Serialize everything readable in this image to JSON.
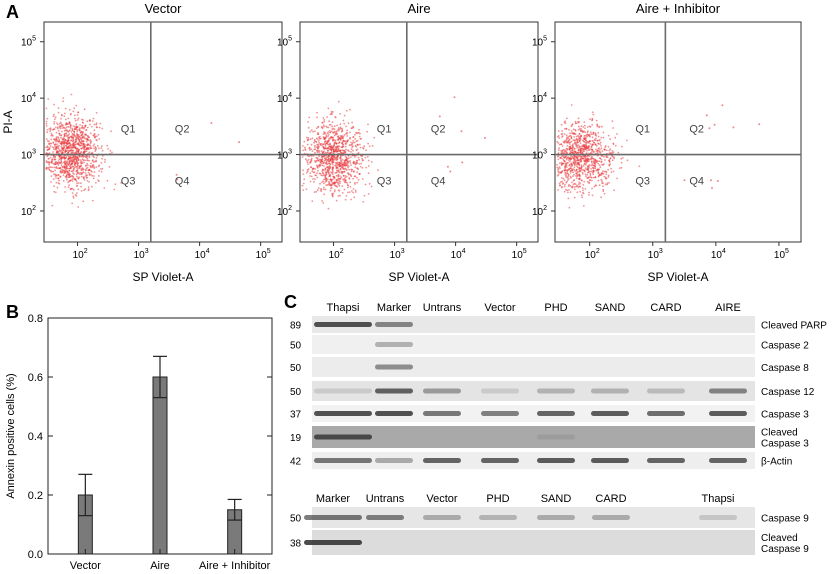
{
  "panel_letters": {
    "a": "A",
    "b": "B",
    "c": "C"
  },
  "flow": {
    "panels": [
      {
        "title": "Vector",
        "pop": {
          "cx": 1.9,
          "cy": 3.05,
          "sx": 0.24,
          "sy": 0.32,
          "n": 1150
        },
        "scatter_q2": 2,
        "scatter_q4": 2
      },
      {
        "title": "Aire",
        "pop": {
          "cx": 2.0,
          "cy": 2.95,
          "sx": 0.24,
          "sy": 0.32,
          "n": 1000
        },
        "scatter_q2": 4,
        "scatter_q4": 3
      },
      {
        "title": "Aire + Inhibitor",
        "pop": {
          "cx": 1.85,
          "cy": 2.95,
          "sx": 0.24,
          "sy": 0.3,
          "n": 1000
        },
        "scatter_q2": 6,
        "scatter_q4": 4
      }
    ],
    "xlabel": "SP Violet-A",
    "ylabel": "PI-A",
    "gate_x": 3.2,
    "gate_y": 3.0,
    "quadrants": [
      "Q1",
      "Q2",
      "Q3",
      "Q4"
    ],
    "x_ticks": [
      {
        "base": "10",
        "exp": "2",
        "v": 2
      },
      {
        "base": "10",
        "exp": "3",
        "v": 3
      },
      {
        "base": "10",
        "exp": "4",
        "v": 4
      },
      {
        "base": "10",
        "exp": "5",
        "v": 5
      }
    ],
    "y_ticks": [
      {
        "base": "10",
        "exp": "2",
        "v": 2
      },
      {
        "base": "10",
        "exp": "3",
        "v": 3
      },
      {
        "base": "10",
        "exp": "4",
        "v": 4
      },
      {
        "base": "10",
        "exp": "5",
        "v": 5
      }
    ],
    "dot_color": "#e8393d"
  },
  "chart_data": {
    "type": "bar",
    "categories": [
      "Vector",
      "Aire",
      "Aire + Inhibitor"
    ],
    "values": [
      0.2,
      0.6,
      0.15
    ],
    "errors": [
      0.07,
      0.07,
      0.035
    ],
    "ylabel": "Annexin positive cells (%)",
    "xlabel": "",
    "ylim": [
      0,
      0.8
    ],
    "yticks": [
      "0.0",
      "0.2",
      "0.4",
      "0.6",
      "0.8"
    ],
    "bar_color": "#7a7a7a"
  },
  "blot_top": {
    "lanes": [
      "Thapsi",
      "Marker",
      "Untrans",
      "Vector",
      "PHD",
      "SAND",
      "CARD",
      "AIRE"
    ],
    "rows": [
      {
        "mw": "89",
        "label": [
          "Cleaved PARP"
        ],
        "bg": "#e8e8e8",
        "bands": [
          0.9,
          0.6,
          0,
          0,
          0,
          0,
          0,
          0
        ]
      },
      {
        "mw": "50",
        "label": [
          "Caspase 2"
        ],
        "bg": "#f0f0f0",
        "bands": [
          0,
          0.35,
          0,
          0,
          0,
          0,
          0,
          0
        ]
      },
      {
        "mw": "50",
        "label": [
          "Caspase 8"
        ],
        "bg": "#ececec",
        "bands": [
          0,
          0.55,
          0,
          0,
          0,
          0,
          0,
          0
        ]
      },
      {
        "mw": "50",
        "label": [
          "Caspase 12"
        ],
        "bg": "#e4e4e4",
        "bands": [
          0.15,
          0.8,
          0.45,
          0.15,
          0.3,
          0.3,
          0.25,
          0.6
        ]
      },
      {
        "mw": "37",
        "label": [
          "Caspase 3"
        ],
        "bg": "#f2f2f2",
        "bands": [
          0.9,
          0.9,
          0.7,
          0.65,
          0.8,
          0.85,
          0.75,
          0.85
        ]
      },
      {
        "mw": "19",
        "label": [
          "Cleaved",
          "Caspase 3"
        ],
        "bg": "#a9a9a9",
        "bands": [
          0.85,
          0,
          0,
          0,
          0.1,
          0,
          0,
          0
        ]
      },
      {
        "mw": "42",
        "label": [
          "β-Actin"
        ],
        "bg": "#eeeeee",
        "bands": [
          0.7,
          0.4,
          0.8,
          0.8,
          0.85,
          0.85,
          0.8,
          0.8
        ]
      }
    ]
  },
  "blot_bottom": {
    "lanes": [
      "Marker",
      "Untrans",
      "Vector",
      "PHD",
      "SAND",
      "CARD",
      "",
      "Thapsi"
    ],
    "rows": [
      {
        "mw": "50",
        "label": [
          "Caspase 9"
        ],
        "bg": "#e6e6e6",
        "bands": [
          0.7,
          0.65,
          0.35,
          0.3,
          0.35,
          0.35,
          0,
          0.2
        ]
      },
      {
        "mw": "38",
        "label": [
          "Cleaved",
          "Caspase 9"
        ],
        "bg": "#dcdcdc",
        "bands": [
          0.95,
          0,
          0,
          0,
          0,
          0,
          0,
          0
        ]
      }
    ]
  }
}
